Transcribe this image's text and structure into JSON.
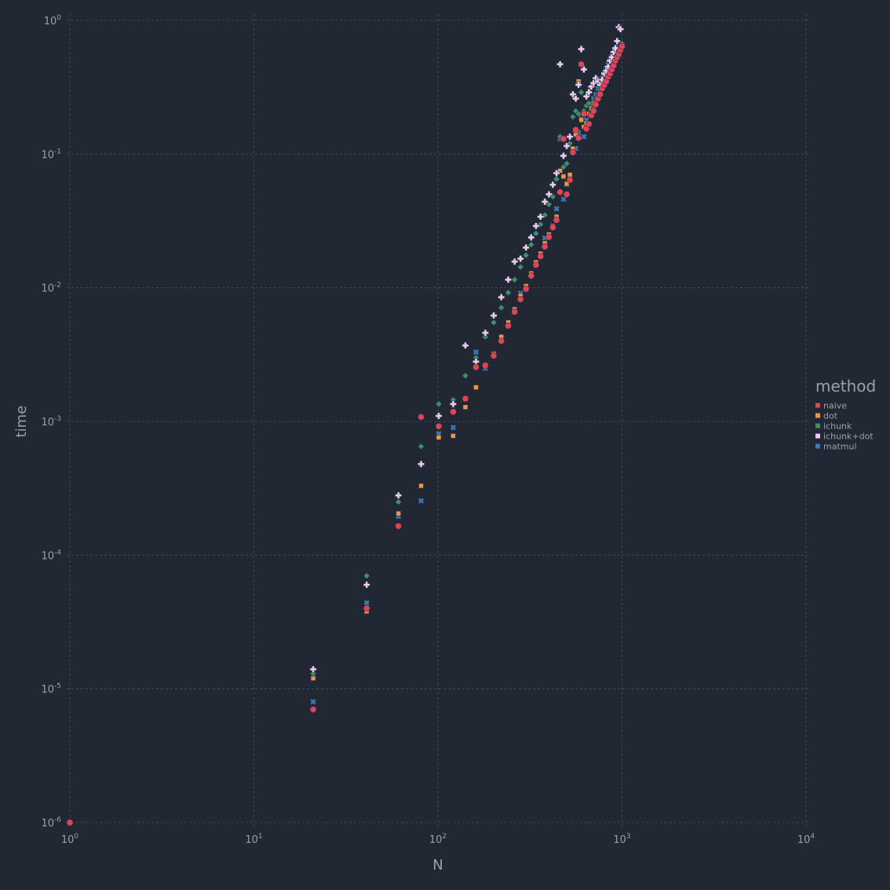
{
  "chart_data": {
    "type": "scatter",
    "xlabel": "N",
    "ylabel": "time",
    "xscale": "log",
    "yscale": "log",
    "xlim": [
      1,
      10000
    ],
    "ylim": [
      1e-06,
      1
    ],
    "x_ticks": [
      {
        "base": "10",
        "exp": "0",
        "value": 1
      },
      {
        "base": "10",
        "exp": "1",
        "value": 10
      },
      {
        "base": "10",
        "exp": "2",
        "value": 100
      },
      {
        "base": "10",
        "exp": "3",
        "value": 1000
      },
      {
        "base": "10",
        "exp": "4",
        "value": 10000
      }
    ],
    "y_ticks": [
      {
        "base": "10",
        "exp": "0",
        "value": 1
      },
      {
        "base": "10",
        "exp": "-1",
        "value": 0.1
      },
      {
        "base": "10",
        "exp": "-2",
        "value": 0.01
      },
      {
        "base": "10",
        "exp": "-3",
        "value": 0.001
      },
      {
        "base": "10",
        "exp": "-4",
        "value": 0.0001
      },
      {
        "base": "10",
        "exp": "-5",
        "value": 1e-05
      },
      {
        "base": "10",
        "exp": "-6",
        "value": 1e-06
      }
    ],
    "grid": true,
    "legend": {
      "title": "method",
      "position": "right"
    },
    "series": [
      {
        "name": "naive",
        "color": "#e0435b",
        "marker": "circle",
        "points": [
          [
            1,
            1e-06
          ],
          [
            21,
            7e-06
          ],
          [
            41,
            4e-05
          ],
          [
            61,
            0.000165
          ],
          [
            81,
            0.00108
          ],
          [
            101,
            0.00092
          ],
          [
            121,
            0.00118
          ],
          [
            141,
            0.00148
          ],
          [
            161,
            0.00255
          ],
          [
            181,
            0.00262
          ],
          [
            201,
            0.0031
          ],
          [
            221,
            0.004
          ],
          [
            241,
            0.0052
          ],
          [
            261,
            0.0066
          ],
          [
            281,
            0.0082
          ],
          [
            301,
            0.0098
          ],
          [
            321,
            0.0123
          ],
          [
            341,
            0.0148
          ],
          [
            361,
            0.0172
          ],
          [
            381,
            0.0203
          ],
          [
            401,
            0.024
          ],
          [
            421,
            0.0283
          ],
          [
            441,
            0.0321
          ],
          [
            461,
            0.052
          ],
          [
            481,
            0.13
          ],
          [
            501,
            0.05
          ],
          [
            521,
            0.064
          ],
          [
            541,
            0.103
          ],
          [
            561,
            0.152
          ],
          [
            581,
            0.132
          ],
          [
            601,
            0.47
          ],
          [
            621,
            0.2
          ],
          [
            641,
            0.155
          ],
          [
            661,
            0.168
          ],
          [
            681,
            0.195
          ],
          [
            701,
            0.21
          ],
          [
            721,
            0.235
          ],
          [
            741,
            0.26
          ],
          [
            761,
            0.28
          ],
          [
            781,
            0.31
          ],
          [
            801,
            0.33
          ],
          [
            821,
            0.35
          ],
          [
            841,
            0.38
          ],
          [
            861,
            0.4
          ],
          [
            881,
            0.43
          ],
          [
            901,
            0.46
          ],
          [
            921,
            0.5
          ],
          [
            941,
            0.53
          ],
          [
            961,
            0.56
          ],
          [
            981,
            0.6
          ],
          [
            1001,
            0.64
          ]
        ]
      },
      {
        "name": "dot",
        "color": "#e39a4f",
        "marker": "square",
        "points": [
          [
            21,
            1.2e-05
          ],
          [
            41,
            3.8e-05
          ],
          [
            61,
            0.000205
          ],
          [
            81,
            0.00033
          ],
          [
            101,
            0.00076
          ],
          [
            121,
            0.00078
          ],
          [
            141,
            0.00128
          ],
          [
            161,
            0.0018
          ],
          [
            181,
            0.00265
          ],
          [
            201,
            0.0032
          ],
          [
            221,
            0.0043
          ],
          [
            241,
            0.0055
          ],
          [
            261,
            0.0069
          ],
          [
            281,
            0.0087
          ],
          [
            301,
            0.0103
          ],
          [
            321,
            0.0128
          ],
          [
            341,
            0.0155
          ],
          [
            361,
            0.018
          ],
          [
            381,
            0.0215
          ],
          [
            401,
            0.025
          ],
          [
            421,
            0.029
          ],
          [
            441,
            0.034
          ],
          [
            461,
            0.075
          ],
          [
            481,
            0.068
          ],
          [
            501,
            0.06
          ],
          [
            521,
            0.07
          ],
          [
            541,
            0.11
          ],
          [
            561,
            0.14
          ],
          [
            581,
            0.35
          ],
          [
            601,
            0.18
          ],
          [
            621,
            0.16
          ],
          [
            641,
            0.17
          ],
          [
            661,
            0.2
          ],
          [
            681,
            0.22
          ],
          [
            701,
            0.24
          ],
          [
            721,
            0.25
          ],
          [
            741,
            0.27
          ],
          [
            761,
            0.29
          ],
          [
            781,
            0.32
          ],
          [
            801,
            0.34
          ],
          [
            821,
            0.37
          ],
          [
            841,
            0.39
          ],
          [
            861,
            0.42
          ],
          [
            881,
            0.45
          ],
          [
            901,
            0.48
          ],
          [
            921,
            0.52
          ],
          [
            941,
            0.55
          ],
          [
            961,
            0.58
          ],
          [
            981,
            0.62
          ],
          [
            1001,
            0.66
          ]
        ]
      },
      {
        "name": "ichunk",
        "color": "#3e8f6e",
        "marker": "diamond",
        "points": [
          [
            21,
            1.3e-05
          ],
          [
            41,
            7e-05
          ],
          [
            61,
            0.00025
          ],
          [
            81,
            0.00065
          ],
          [
            101,
            0.00135
          ],
          [
            121,
            0.00145
          ],
          [
            141,
            0.0022
          ],
          [
            161,
            0.003
          ],
          [
            181,
            0.0043
          ],
          [
            201,
            0.0055
          ],
          [
            221,
            0.0071
          ],
          [
            241,
            0.0092
          ],
          [
            261,
            0.0115
          ],
          [
            281,
            0.0143
          ],
          [
            301,
            0.0175
          ],
          [
            321,
            0.021
          ],
          [
            341,
            0.0255
          ],
          [
            361,
            0.0298
          ],
          [
            381,
            0.035
          ],
          [
            401,
            0.042
          ],
          [
            421,
            0.048
          ],
          [
            441,
            0.065
          ],
          [
            461,
            0.135
          ],
          [
            481,
            0.08
          ],
          [
            501,
            0.085
          ],
          [
            521,
            0.12
          ],
          [
            541,
            0.19
          ],
          [
            561,
            0.21
          ],
          [
            581,
            0.2
          ],
          [
            601,
            0.29
          ],
          [
            621,
            0.21
          ],
          [
            641,
            0.23
          ],
          [
            661,
            0.24
          ],
          [
            681,
            0.2
          ],
          [
            701,
            0.22
          ],
          [
            721,
            0.25
          ],
          [
            741,
            0.27
          ],
          [
            761,
            0.3
          ],
          [
            781,
            0.33
          ],
          [
            801,
            0.35
          ],
          [
            821,
            0.38
          ],
          [
            841,
            0.4
          ],
          [
            861,
            0.43
          ],
          [
            881,
            0.46
          ],
          [
            901,
            0.49
          ],
          [
            921,
            0.53
          ],
          [
            941,
            0.56
          ],
          [
            961,
            0.6
          ],
          [
            981,
            0.63
          ],
          [
            1001,
            0.67
          ]
        ]
      },
      {
        "name": "ichunk+dot",
        "color": "#e6cdf0",
        "marker": "cross",
        "points": [
          [
            21,
            1.4e-05
          ],
          [
            41,
            6e-05
          ],
          [
            61,
            0.00028
          ],
          [
            81,
            0.00048
          ],
          [
            101,
            0.0011
          ],
          [
            121,
            0.00135
          ],
          [
            141,
            0.0037
          ],
          [
            161,
            0.0028
          ],
          [
            181,
            0.0046
          ],
          [
            201,
            0.0062
          ],
          [
            221,
            0.0085
          ],
          [
            241,
            0.0115
          ],
          [
            261,
            0.0157
          ],
          [
            281,
            0.0165
          ],
          [
            301,
            0.02
          ],
          [
            321,
            0.0238
          ],
          [
            341,
            0.029
          ],
          [
            361,
            0.034
          ],
          [
            381,
            0.044
          ],
          [
            401,
            0.05
          ],
          [
            421,
            0.059
          ],
          [
            441,
            0.072
          ],
          [
            461,
            0.47
          ],
          [
            481,
            0.097
          ],
          [
            501,
            0.115
          ],
          [
            521,
            0.135
          ],
          [
            541,
            0.28
          ],
          [
            561,
            0.26
          ],
          [
            581,
            0.33
          ],
          [
            601,
            0.61
          ],
          [
            621,
            0.43
          ],
          [
            641,
            0.27
          ],
          [
            661,
            0.29
          ],
          [
            681,
            0.32
          ],
          [
            701,
            0.34
          ],
          [
            721,
            0.37
          ],
          [
            741,
            0.35
          ],
          [
            761,
            0.33
          ],
          [
            781,
            0.36
          ],
          [
            801,
            0.4
          ],
          [
            821,
            0.42
          ],
          [
            841,
            0.45
          ],
          [
            861,
            0.5
          ],
          [
            881,
            0.53
          ],
          [
            901,
            0.58
          ],
          [
            921,
            0.62
          ],
          [
            941,
            0.7
          ],
          [
            961,
            0.89
          ],
          [
            981,
            0.86
          ]
        ]
      },
      {
        "name": "matmul",
        "color": "#3b7bbd",
        "marker": "x",
        "points": [
          [
            21,
            8e-06
          ],
          [
            41,
            4.4e-05
          ],
          [
            61,
            0.000195
          ],
          [
            81,
            0.000255
          ],
          [
            101,
            0.00081
          ],
          [
            121,
            0.0009
          ],
          [
            161,
            0.0033
          ],
          [
            181,
            0.0025
          ],
          [
            201,
            0.0032
          ],
          [
            221,
            0.0042
          ],
          [
            241,
            0.0054
          ],
          [
            261,
            0.0068
          ],
          [
            281,
            0.0091
          ],
          [
            301,
            0.0101
          ],
          [
            321,
            0.0126
          ],
          [
            341,
            0.0152
          ],
          [
            361,
            0.0177
          ],
          [
            381,
            0.0236
          ],
          [
            401,
            0.0245
          ],
          [
            421,
            0.0285
          ],
          [
            441,
            0.039
          ],
          [
            461,
            0.13
          ],
          [
            481,
            0.046
          ],
          [
            501,
            0.059
          ],
          [
            521,
            0.068
          ],
          [
            541,
            0.107
          ],
          [
            561,
            0.11
          ],
          [
            581,
            0.145
          ],
          [
            601,
            0.185
          ],
          [
            621,
            0.135
          ],
          [
            641,
            0.18
          ],
          [
            661,
            0.2
          ],
          [
            681,
            0.23
          ],
          [
            701,
            0.26
          ],
          [
            721,
            0.28
          ],
          [
            741,
            0.31
          ],
          [
            761,
            0.34
          ],
          [
            781,
            0.37
          ],
          [
            801,
            0.4
          ],
          [
            821,
            0.44
          ],
          [
            841,
            0.47
          ],
          [
            861,
            0.5
          ],
          [
            881,
            0.54
          ],
          [
            901,
            0.57
          ],
          [
            921,
            0.6
          ],
          [
            941,
            0.63
          ]
        ]
      }
    ]
  }
}
